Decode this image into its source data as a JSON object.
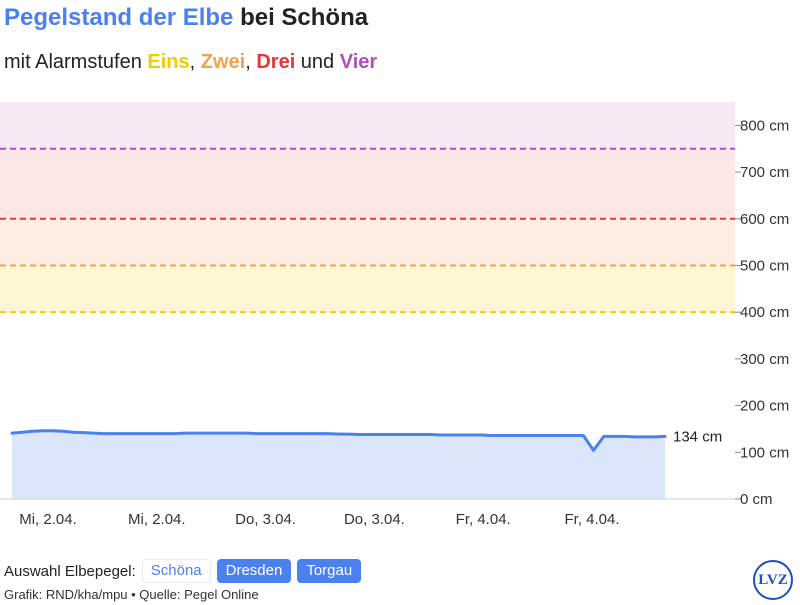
{
  "header": {
    "title_accent": "Pegelstand der Elbe",
    "title_rest": " bei Schöna",
    "subtitle_prefix": "mit Alarmstufen ",
    "sep1": ", ",
    "sep2": ", ",
    "sep3": " und ",
    "levels": [
      {
        "label": "Eins",
        "color": "#f2cc00"
      },
      {
        "label": "Zwei",
        "color": "#f5a04a"
      },
      {
        "label": "Drei",
        "color": "#e8343c"
      },
      {
        "label": "Vier",
        "color": "#b54bc0"
      }
    ]
  },
  "footer": {
    "selector_label": "Auswahl Elbepegel:",
    "gauges": [
      {
        "label": "Schöna",
        "active": true
      },
      {
        "label": "Dresden",
        "active": false
      },
      {
        "label": "Torgau",
        "active": false
      }
    ],
    "credit": "Grafik: RND/kha/mpu • Quelle: Pegel Online",
    "logo_text": "LVZ"
  },
  "chart_data": {
    "type": "area",
    "y_unit": "cm",
    "ylim": [
      0,
      850
    ],
    "y_ticks": [
      0,
      100,
      200,
      300,
      400,
      500,
      600,
      700,
      800
    ],
    "y_tick_labels": [
      "0 cm",
      "100 cm",
      "200 cm",
      "300 cm",
      "400 cm",
      "500 cm",
      "600 cm",
      "700 cm",
      "800 cm"
    ],
    "x_tick_labels": [
      "Mi, 2.04.",
      "Mi, 2.04.",
      "Do, 3.04.",
      "Do, 3.04.",
      "Fr, 4.04.",
      "Fr, 4.04."
    ],
    "alarm_levels": [
      {
        "value": 400,
        "color": "#f2cc00",
        "fill": "#fdf7d4"
      },
      {
        "value": 500,
        "color": "#f5a04a",
        "fill": "#fdeee4"
      },
      {
        "value": 600,
        "color": "#e8343c",
        "fill": "#fce6e6"
      },
      {
        "value": 750,
        "color": "#b54bc0",
        "fill": "#f8e8f4"
      }
    ],
    "series": [
      {
        "values": [
          141,
          143,
          145,
          146,
          146,
          145,
          143,
          142,
          141,
          140,
          140,
          140,
          140,
          140,
          140,
          140,
          140,
          141,
          141,
          141,
          141,
          141,
          141,
          141,
          140,
          140,
          140,
          140,
          140,
          140,
          140,
          140,
          139,
          139,
          138,
          138,
          138,
          138,
          138,
          138,
          138,
          138,
          137,
          137,
          137,
          137,
          137,
          136,
          136,
          136,
          136,
          136,
          136,
          136,
          136,
          136,
          136,
          104,
          134,
          134,
          134,
          133,
          133,
          133,
          134
        ],
        "last_label": "134 cm",
        "color": "#4a80f0",
        "fill": "#dbe6fb"
      }
    ]
  }
}
